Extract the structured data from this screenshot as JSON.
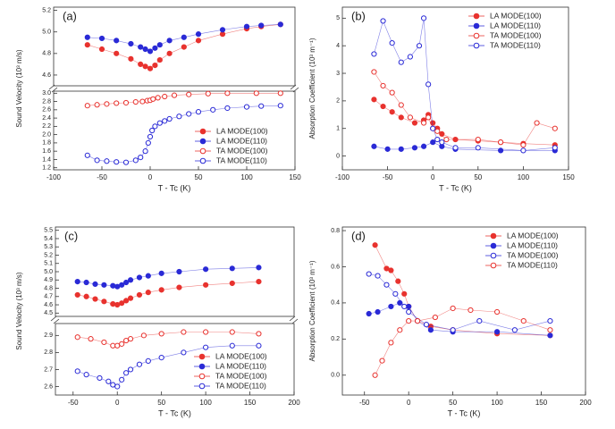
{
  "chart_data": [
    {
      "type": "scatter",
      "label": "(a)",
      "xlabel": "T - Tc (K)",
      "ylabel": "Sound Velocity (10³ m/s)",
      "legend": "lower right",
      "xlim": [
        -100,
        150
      ],
      "xticks": [
        -100,
        -50,
        0,
        50,
        100,
        150
      ],
      "segments": [
        {
          "ylim": [
            4.5,
            5.23
          ],
          "yticks": [
            4.6,
            4.8,
            {
              "value": 5,
              "label": "5.0"
            },
            5.2
          ]
        },
        {
          "ylim": [
            1.15,
            3.05
          ],
          "yticks": [
            1.2,
            1.4,
            1.6,
            1.8,
            {
              "value": 2,
              "label": "2.0"
            },
            2.2,
            2.4,
            2.6,
            2.8,
            {
              "value": 3,
              "label": "3.0"
            }
          ]
        }
      ],
      "series": [
        {
          "name": "LA MODE(100)",
          "color": "#e8322e",
          "marker": "filled",
          "segment": 0,
          "x": [
            -65,
            -50,
            -35,
            -20,
            -10,
            -5,
            0,
            5,
            10,
            20,
            35,
            50,
            75,
            100,
            115,
            135
          ],
          "values": [
            4.88,
            4.84,
            4.8,
            4.75,
            4.7,
            4.68,
            4.66,
            4.69,
            4.74,
            4.8,
            4.86,
            4.92,
            4.98,
            5.03,
            5.05,
            5.07
          ]
        },
        {
          "name": "LA MODE(110)",
          "color": "#2a2ad6",
          "marker": "filled",
          "segment": 0,
          "x": [
            -65,
            -50,
            -35,
            -20,
            -10,
            -5,
            0,
            5,
            10,
            20,
            35,
            50,
            75,
            100,
            115,
            135
          ],
          "values": [
            4.95,
            4.94,
            4.92,
            4.89,
            4.86,
            4.84,
            4.82,
            4.85,
            4.88,
            4.92,
            4.95,
            4.98,
            5.02,
            5.05,
            5.06,
            5.07
          ]
        },
        {
          "name": "TA MODE(100)",
          "color": "#e8322e",
          "marker": "open",
          "segment": 1,
          "x": [
            -65,
            -55,
            -45,
            -35,
            -25,
            -15,
            -8,
            -3,
            0,
            3,
            8,
            15,
            25,
            40,
            60,
            80,
            110,
            135
          ],
          "values": [
            2.7,
            2.72,
            2.74,
            2.76,
            2.77,
            2.79,
            2.8,
            2.82,
            2.83,
            2.86,
            2.89,
            2.92,
            2.95,
            2.97,
            2.99,
            3.0,
            3.0,
            3.0
          ]
        },
        {
          "name": "TA MODE(110)",
          "color": "#2a2ad6",
          "marker": "open",
          "segment": 1,
          "x": [
            -65,
            -55,
            -45,
            -35,
            -25,
            -15,
            -10,
            -5,
            -2,
            0,
            2,
            5,
            10,
            15,
            20,
            30,
            40,
            50,
            65,
            80,
            100,
            115,
            135
          ],
          "values": [
            1.5,
            1.38,
            1.36,
            1.34,
            1.33,
            1.38,
            1.45,
            1.6,
            1.8,
            1.95,
            2.1,
            2.2,
            2.28,
            2.33,
            2.38,
            2.44,
            2.5,
            2.55,
            2.6,
            2.64,
            2.67,
            2.69,
            2.7
          ]
        }
      ]
    },
    {
      "type": "scatter",
      "label": "(b)",
      "xlabel": "T - Tc (K)",
      "ylabel": "Absorption Coefficient (10³ m⁻¹)",
      "legend": "upper right",
      "xlim": [
        -100,
        150
      ],
      "xticks": [
        -100,
        -50,
        0,
        50,
        100,
        150
      ],
      "ylim": [
        -0.5,
        5.4
      ],
      "yticks": [
        0,
        1,
        2,
        3,
        4,
        5
      ],
      "series": [
        {
          "name": "LA MODE(100)",
          "color": "#e8322e",
          "marker": "filled",
          "x": [
            -65,
            -55,
            -45,
            -35,
            -20,
            -10,
            -5,
            0,
            5,
            10,
            25,
            50,
            75,
            100,
            135
          ],
          "values": [
            2.05,
            1.8,
            1.6,
            1.4,
            1.2,
            1.3,
            1.5,
            1.2,
            1.0,
            0.8,
            0.6,
            0.55,
            0.5,
            0.45,
            0.4
          ]
        },
        {
          "name": "LA MODE(110)",
          "color": "#2a2ad6",
          "marker": "filled",
          "x": [
            -65,
            -50,
            -35,
            -20,
            -10,
            0,
            10,
            25,
            75,
            135
          ],
          "values": [
            0.35,
            0.25,
            0.25,
            0.3,
            0.35,
            0.5,
            0.35,
            0.25,
            0.2,
            0.2
          ]
        },
        {
          "name": "TA MODE(100)",
          "color": "#e8322e",
          "marker": "open",
          "x": [
            -65,
            -55,
            -45,
            -35,
            -25,
            -10,
            -5,
            0,
            5,
            15,
            50,
            75,
            100,
            115,
            135
          ],
          "values": [
            3.05,
            2.55,
            2.3,
            1.85,
            1.4,
            1.2,
            1.4,
            1.0,
            0.9,
            0.6,
            0.6,
            0.5,
            0.4,
            1.2,
            1.0
          ]
        },
        {
          "name": "TA MODE(110)",
          "color": "#2a2ad6",
          "marker": "open",
          "x": [
            -65,
            -55,
            -45,
            -35,
            -25,
            -15,
            -10,
            -5,
            0,
            5,
            10,
            25,
            50,
            100,
            135
          ],
          "values": [
            3.7,
            4.9,
            4.1,
            3.4,
            3.6,
            4.0,
            5.0,
            2.6,
            1.0,
            0.6,
            0.5,
            0.3,
            0.3,
            0.2,
            0.3
          ]
        }
      ]
    },
    {
      "type": "scatter",
      "label": "(c)",
      "xlabel": "T - Tc (K)",
      "ylabel": "Sound Velocity (10³ m/s)",
      "legend": "lower right",
      "xlim": [
        -70,
        200
      ],
      "xticks": [
        -50,
        0,
        50,
        100,
        150,
        200
      ],
      "segments": [
        {
          "ylim": [
            4.46,
            5.54
          ],
          "yticks": [
            4.5,
            4.6,
            4.7,
            4.8,
            4.9,
            {
              "value": 5,
              "label": "5.0"
            },
            5.1,
            5.2,
            5.3,
            5.4,
            5.5
          ]
        },
        {
          "ylim": [
            2.55,
            2.97
          ],
          "yticks": [
            2.6,
            2.7,
            2.8,
            2.9
          ]
        }
      ],
      "series": [
        {
          "name": "LA MODE(100)",
          "color": "#e8322e",
          "marker": "filled",
          "segment": 0,
          "x": [
            -45,
            -35,
            -25,
            -15,
            -5,
            0,
            5,
            10,
            15,
            25,
            35,
            50,
            70,
            100,
            130,
            160
          ],
          "values": [
            4.72,
            4.7,
            4.67,
            4.64,
            4.61,
            4.6,
            4.62,
            4.65,
            4.68,
            4.72,
            4.75,
            4.78,
            4.81,
            4.84,
            4.86,
            4.88
          ]
        },
        {
          "name": "LA MODE(110)",
          "color": "#2a2ad6",
          "marker": "filled",
          "segment": 0,
          "x": [
            -45,
            -35,
            -25,
            -15,
            -5,
            0,
            5,
            10,
            15,
            25,
            35,
            50,
            70,
            100,
            130,
            160
          ],
          "values": [
            4.88,
            4.87,
            4.85,
            4.84,
            4.83,
            4.82,
            4.84,
            4.87,
            4.9,
            4.93,
            4.95,
            4.98,
            5.0,
            5.03,
            5.04,
            5.05
          ]
        },
        {
          "name": "TA MODE(100)",
          "color": "#e8322e",
          "marker": "open",
          "segment": 1,
          "x": [
            -45,
            -30,
            -15,
            -5,
            0,
            5,
            10,
            15,
            30,
            50,
            75,
            100,
            130,
            160
          ],
          "values": [
            2.89,
            2.88,
            2.86,
            2.84,
            2.84,
            2.85,
            2.87,
            2.88,
            2.9,
            2.91,
            2.92,
            2.92,
            2.92,
            2.91
          ]
        },
        {
          "name": "TA MODE(110)",
          "color": "#2a2ad6",
          "marker": "open",
          "segment": 1,
          "x": [
            -45,
            -35,
            -20,
            -10,
            -5,
            0,
            5,
            10,
            15,
            25,
            35,
            50,
            75,
            100,
            130,
            160
          ],
          "values": [
            2.69,
            2.67,
            2.65,
            2.63,
            2.61,
            2.6,
            2.64,
            2.68,
            2.7,
            2.73,
            2.75,
            2.77,
            2.8,
            2.83,
            2.84,
            2.84
          ]
        }
      ]
    },
    {
      "type": "scatter",
      "label": "(d)",
      "xlabel": "T - Tc (K)",
      "ylabel": "Absorption Coefficient (10³ m⁻¹)",
      "legend": "upper right",
      "xlim": [
        -75,
        200
      ],
      "xticks": [
        -50,
        0,
        50,
        100,
        150,
        200
      ],
      "ylim": [
        -0.11,
        0.82
      ],
      "yticks": [
        {
          "value": 0,
          "label": "0.0"
        },
        0.2,
        0.4,
        0.6,
        0.8
      ],
      "series": [
        {
          "name": "LA MODE(100)",
          "color": "#e8322e",
          "marker": "filled",
          "x": [
            -38,
            -25,
            -20,
            -12,
            -5,
            0,
            10,
            25,
            50,
            100,
            160
          ],
          "values": [
            0.72,
            0.59,
            0.58,
            0.52,
            0.45,
            0.38,
            0.3,
            0.27,
            0.25,
            0.23,
            0.22
          ]
        },
        {
          "name": "LA MODE(110)",
          "color": "#2a2ad6",
          "marker": "filled",
          "x": [
            -45,
            -35,
            -20,
            -10,
            0,
            10,
            25,
            50,
            100,
            160
          ],
          "values": [
            0.34,
            0.35,
            0.38,
            0.4,
            0.38,
            0.3,
            0.25,
            0.24,
            0.24,
            0.22
          ]
        },
        {
          "name": "TA MODE(100)",
          "color": "#2a2ad6",
          "marker": "open",
          "x": [
            -45,
            -35,
            -25,
            -15,
            -5,
            0,
            20,
            50,
            80,
            120,
            160
          ],
          "values": [
            0.56,
            0.55,
            0.5,
            0.45,
            0.38,
            0.35,
            0.28,
            0.25,
            0.3,
            0.25,
            0.3
          ]
        },
        {
          "name": "TA MODE(110)",
          "color": "#e8322e",
          "marker": "open",
          "x": [
            -38,
            -30,
            -20,
            -10,
            0,
            10,
            30,
            50,
            70,
            100,
            130,
            160
          ],
          "values": [
            0.0,
            0.08,
            0.18,
            0.25,
            0.3,
            0.3,
            0.32,
            0.37,
            0.36,
            0.35,
            0.3,
            0.25
          ]
        }
      ]
    }
  ]
}
